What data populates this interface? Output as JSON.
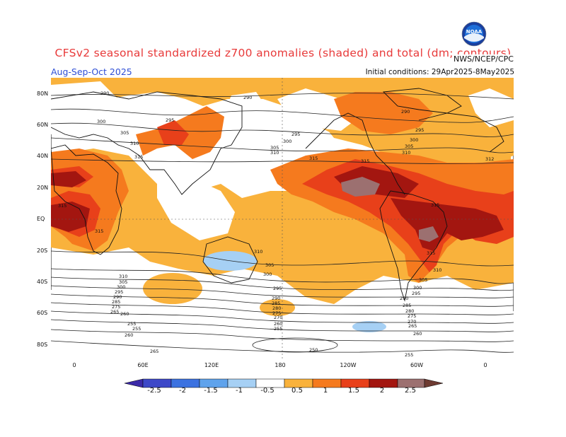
{
  "header": {
    "title": "CFSv2 seasonal standardized z700 anomalies (shaded) and total (dm; contours)",
    "period": "Aug-Sep-Oct 2025",
    "initial_conditions": "Initial conditions: 29Apr2025-8May2025",
    "agency": "NWS/NCEP/CPC",
    "logo": {
      "text": "NOAA",
      "icon": "noaa-logo"
    }
  },
  "axes": {
    "latitudes": [
      "80N",
      "60N",
      "40N",
      "20N",
      "EQ",
      "20S",
      "40S",
      "60S",
      "80S"
    ],
    "longitudes": [
      "0",
      "60E",
      "120E",
      "180",
      "120W",
      "60W",
      "0"
    ]
  },
  "colorbar": {
    "labels": [
      "-2.5",
      "-2",
      "-1.5",
      "-1",
      "-0.5",
      "0.5",
      "1",
      "1.5",
      "2",
      "2.5"
    ],
    "colors": [
      "#3b2aa8",
      "#3d48c8",
      "#3c72e0",
      "#5fa3ec",
      "#a6d0f4",
      "#ffffff",
      "#f9b23c",
      "#f57a1e",
      "#e8401a",
      "#a31610",
      "#9c7070",
      "#6e3b32"
    ]
  },
  "contour_labels": {
    "c290": "290",
    "c295": "295",
    "c300": "300",
    "c305": "305",
    "c310": "310",
    "c312": "312",
    "c315": "315",
    "c250": "250",
    "c255": "255",
    "c260": "260",
    "c265": "265",
    "c270": "270",
    "c275": "275",
    "c280": "280",
    "c285": "285"
  }
}
